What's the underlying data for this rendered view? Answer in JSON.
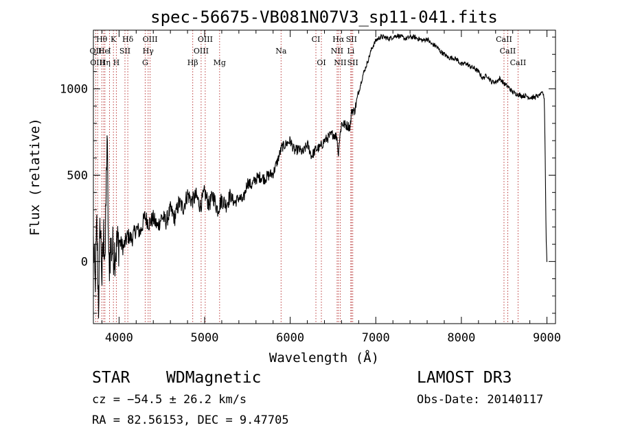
{
  "chart_data": {
    "type": "line",
    "title": "spec-56675-VB081N07V3_sp11-041.fits",
    "xlabel": "Wavelength (Å)",
    "ylabel": "Flux (relative)",
    "xlim": [
      3700,
      9100
    ],
    "ylim": [
      -360,
      1340
    ],
    "x_ticks": [
      4000,
      5000,
      6000,
      7000,
      8000,
      9000
    ],
    "x_tick_labels": [
      "4000",
      "5000",
      "6000",
      "7000",
      "8000",
      "9000"
    ],
    "y_ticks": [
      0,
      500,
      1000
    ],
    "y_tick_labels": [
      "0",
      "500",
      "1000"
    ],
    "grid": false,
    "series": [
      {
        "name": "Flux",
        "x": [
          3700,
          3720,
          3740,
          3760,
          3780,
          3800,
          3820,
          3840,
          3860,
          3880,
          3900,
          3950,
          4000,
          4050,
          4100,
          4150,
          4200,
          4250,
          4300,
          4350,
          4400,
          4450,
          4500,
          4550,
          4600,
          4650,
          4700,
          4750,
          4800,
          4850,
          4900,
          4950,
          5000,
          5050,
          5100,
          5150,
          5200,
          5250,
          5300,
          5350,
          5400,
          5450,
          5500,
          5550,
          5600,
          5650,
          5700,
          5750,
          5800,
          5850,
          5900,
          5950,
          6000,
          6050,
          6100,
          6150,
          6200,
          6250,
          6300,
          6350,
          6400,
          6450,
          6500,
          6550,
          6560,
          6570,
          6600,
          6650,
          6700,
          6720,
          6750,
          6800,
          6850,
          6900,
          6950,
          7000,
          7050,
          7100,
          7150,
          7200,
          7250,
          7300,
          7350,
          7400,
          7450,
          7500,
          7550,
          7600,
          7650,
          7700,
          7750,
          7800,
          7850,
          7900,
          7950,
          8000,
          8050,
          8100,
          8150,
          8200,
          8250,
          8300,
          8350,
          8400,
          8450,
          8500,
          8550,
          8600,
          8650,
          8700,
          8750,
          8800,
          8850,
          8900,
          8950,
          8970,
          8980,
          8990,
          9000
        ],
        "values": [
          100,
          -150,
          200,
          -250,
          250,
          -100,
          150,
          50,
          750,
          -50,
          80,
          60,
          120,
          80,
          150,
          130,
          190,
          170,
          260,
          220,
          250,
          200,
          260,
          230,
          300,
          250,
          340,
          310,
          390,
          350,
          380,
          320,
          400,
          330,
          380,
          300,
          360,
          330,
          380,
          340,
          370,
          350,
          460,
          440,
          480,
          490,
          480,
          500,
          510,
          580,
          660,
          680,
          700,
          640,
          650,
          630,
          680,
          610,
          650,
          660,
          700,
          720,
          740,
          720,
          610,
          680,
          800,
          790,
          780,
          880,
          870,
          980,
          1080,
          1150,
          1230,
          1280,
          1300,
          1300,
          1290,
          1300,
          1310,
          1300,
          1290,
          1300,
          1300,
          1290,
          1280,
          1290,
          1260,
          1250,
          1220,
          1200,
          1180,
          1180,
          1170,
          1140,
          1150,
          1130,
          1120,
          1100,
          1060,
          1080,
          1040,
          1040,
          1060,
          1030,
          1010,
          980,
          970,
          960,
          960,
          950,
          950,
          960,
          980,
          940,
          600,
          150,
          0
        ]
      }
    ],
    "lines": [
      {
        "label": "Hθ",
        "x": 3798,
        "row": 0
      },
      {
        "label": "K",
        "x": 3934,
        "row": 0
      },
      {
        "label": "Hδ",
        "x": 4102,
        "row": 0
      },
      {
        "label": "OIII",
        "x": 4363,
        "row": 0
      },
      {
        "label": "OIII",
        "x": 5007,
        "row": 0
      },
      {
        "label": "CI",
        "x": 6300,
        "row": 0
      },
      {
        "label": "Hα",
        "x": 6563,
        "row": 0
      },
      {
        "label": "SII",
        "x": 6716,
        "row": 0
      },
      {
        "label": "CaII",
        "x": 8498,
        "row": 0
      },
      {
        "label": "OII",
        "x": 3727,
        "row": 1
      },
      {
        "label": "He",
        "x": 3820,
        "row": 1
      },
      {
        "label": "I",
        "x": 3889,
        "row": 1
      },
      {
        "label": "SII",
        "x": 4069,
        "row": 1
      },
      {
        "label": "Hγ",
        "x": 4340,
        "row": 1
      },
      {
        "label": "OIII",
        "x": 4959,
        "row": 1
      },
      {
        "label": "Na",
        "x": 5893,
        "row": 1
      },
      {
        "label": "NII",
        "x": 6548,
        "row": 1
      },
      {
        "label": "Li",
        "x": 6708,
        "row": 1
      },
      {
        "label": "CaII",
        "x": 8542,
        "row": 1
      },
      {
        "label": "OIII",
        "x": 3750,
        "row": 2
      },
      {
        "label": "Hη",
        "x": 3835,
        "row": 2
      },
      {
        "label": "H",
        "x": 3968,
        "row": 2
      },
      {
        "label": "G",
        "x": 4305,
        "row": 2
      },
      {
        "label": "Hβ",
        "x": 4861,
        "row": 2
      },
      {
        "label": "Mg",
        "x": 5175,
        "row": 2
      },
      {
        "label": "OI",
        "x": 6364,
        "row": 2
      },
      {
        "label": "NII",
        "x": 6584,
        "row": 2
      },
      {
        "label": "SII",
        "x": 6731,
        "row": 2
      },
      {
        "label": "CaII",
        "x": 8662,
        "row": 2
      }
    ]
  },
  "footer": {
    "object_class": "STAR",
    "subclass": "WDMagnetic",
    "survey": "LAMOST DR3",
    "cz": "cz = −54.5 ± 26.2 km/s",
    "obs_date": "Obs-Date: 20140117",
    "coords": "RA =  82.56153, DEC =   9.47705"
  }
}
